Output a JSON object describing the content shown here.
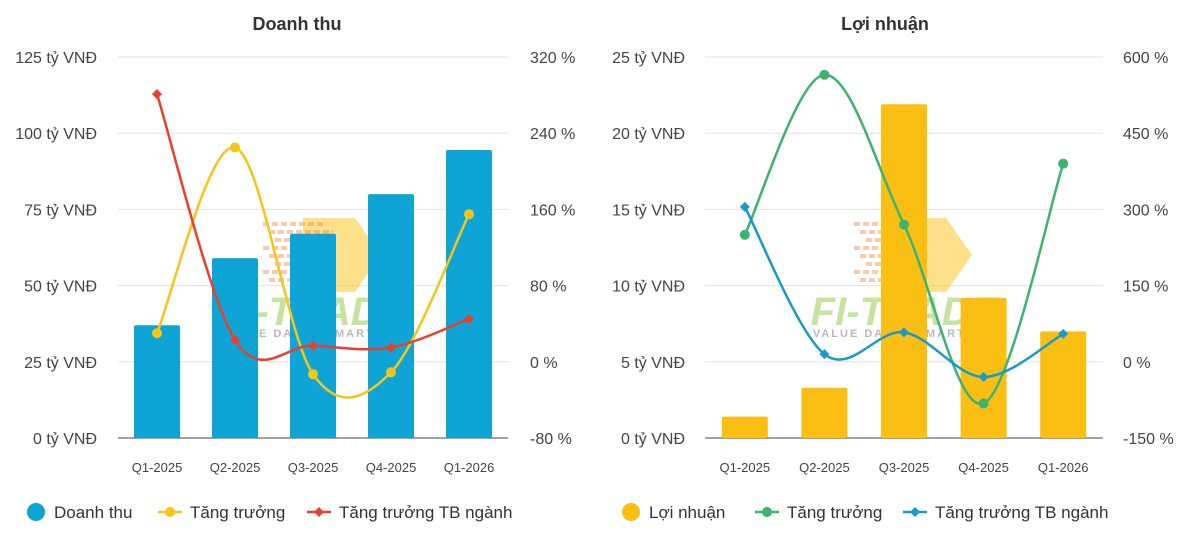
{
  "watermark": {
    "text": "FI-TRADE",
    "tagline": "VALUE DATA - SMART INV"
  },
  "chart_data": [
    {
      "type": "bar",
      "title": "Doanh thu",
      "categories": [
        "Q1-2025",
        "Q2-2025",
        "Q3-2025",
        "Q4-2025",
        "Q1-2026"
      ],
      "left_axis": {
        "ticks": [
          "0 tỷ VNĐ",
          "25 tỷ VNĐ",
          "50 tỷ VNĐ",
          "75 tỷ VNĐ",
          "100 tỷ VNĐ",
          "125 tỷ VNĐ"
        ],
        "ylim": [
          0,
          125
        ]
      },
      "right_axis": {
        "ticks": [
          "-80 %",
          "0 %",
          "80 %",
          "160 %",
          "240 %",
          "320 %"
        ],
        "ylim": [
          -80,
          320
        ]
      },
      "series": [
        {
          "name": "Doanh thu",
          "kind": "bar",
          "axis": "left",
          "color": "#0ea5d6",
          "marker": "circle",
          "values": [
            37,
            59,
            67,
            80,
            94.5
          ]
        },
        {
          "name": "Tăng trưởng",
          "kind": "line",
          "axis": "right",
          "color": "#f5c518",
          "marker": "circle",
          "values": [
            30,
            225,
            -13,
            -11,
            155
          ]
        },
        {
          "name": "Tăng trưởng TB ngành",
          "kind": "line",
          "axis": "right",
          "color": "#e8402c",
          "marker": "diamond",
          "values": [
            281,
            23,
            17,
            15,
            45
          ]
        }
      ],
      "grid": true,
      "legend": "bottom"
    },
    {
      "type": "bar",
      "title": "Lợi nhuận",
      "categories": [
        "Q1-2025",
        "Q2-2025",
        "Q3-2025",
        "Q4-2025",
        "Q1-2026"
      ],
      "left_axis": {
        "ticks": [
          "0 tỷ VNĐ",
          "5 tỷ VNĐ",
          "10 tỷ VNĐ",
          "15 tỷ VNĐ",
          "20 tỷ VNĐ",
          "25 tỷ VNĐ"
        ],
        "ylim": [
          0,
          25
        ]
      },
      "right_axis": {
        "ticks": [
          "-150 %",
          "0 %",
          "150 %",
          "300 %",
          "450 %",
          "600 %"
        ],
        "ylim": [
          -150,
          600
        ]
      },
      "series": [
        {
          "name": "Lợi nhuận",
          "kind": "bar",
          "axis": "left",
          "color": "#fbbf14",
          "marker": "circle",
          "values": [
            1.4,
            3.3,
            21.9,
            9.2,
            7.0
          ]
        },
        {
          "name": "Tăng trưởng",
          "kind": "line",
          "axis": "right",
          "color": "#3cb371",
          "marker": "circle",
          "values": [
            250,
            565,
            270,
            -82,
            390
          ]
        },
        {
          "name": "Tăng trưởng TB ngành",
          "kind": "line",
          "axis": "right",
          "color": "#1a9bc7",
          "marker": "diamond",
          "values": [
            305,
            15,
            58,
            -30,
            55
          ]
        }
      ],
      "grid": true,
      "legend": "bottom"
    }
  ]
}
